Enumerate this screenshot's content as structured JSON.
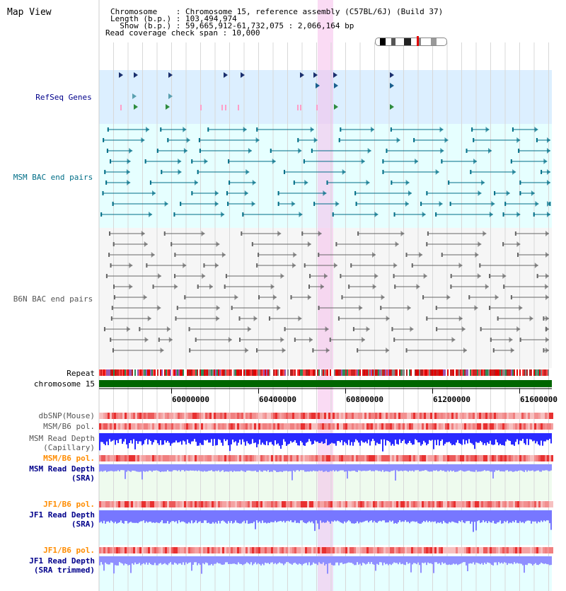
{
  "header": {
    "title": "Map View",
    "chromosome_line": "Chromosome    : Chromosome 15, reference assembly (C57BL/6J) (Build 37)",
    "length_line": "Length (b.p.) : 103,494,974",
    "show_line": "  Show (b.p.) : 59,665,912-61,732,075 : 2,066,164 bp",
    "coverage_line": "Read coverage check span : 10,000"
  },
  "tracks": {
    "refseq": "RefSeq Genes",
    "msm_bac": "MSM BAC end pairs",
    "b6n_bac": "B6N BAC end pairs",
    "repeat": "Repeat",
    "chromosome": "chromosome 15",
    "dbsnp": "dbSNP(Mouse)",
    "msm_b6_pol": "MSM/B6 pol.",
    "msm_depth_cap_1": "MSM Read Depth",
    "msm_depth_cap_2": "(Capillary)",
    "msm_b6_pol_sra": "MSM/B6 pol.",
    "msm_depth_sra_1": "MSM Read Depth",
    "msm_depth_sra_2": "(SRA)",
    "jf1_b6_pol": "JF1/B6 pol.",
    "jf1_depth_1": "JF1 Read Depth",
    "jf1_depth_2": "(SRA)",
    "jf1_b6_pol_2": "JF1/B6 pol.",
    "jf1_trim_1": "JF1 Read Depth",
    "jf1_trim_2": "(SRA trimmed)"
  },
  "axis": {
    "ticks": [
      "60000000",
      "60400000",
      "60800000",
      "61200000",
      "61600000"
    ]
  },
  "colors": {
    "refseq_bg": "#dcefff",
    "msm_bg": "#e6ffff",
    "b6n_bg": "#f6f6f6",
    "highlight": "#f5ddf0",
    "chromosome_bar": "#006600",
    "label_blue": "#00008b",
    "label_teal": "#006e87",
    "label_orange": "#ff8c00",
    "label_gray": "#555555"
  }
}
